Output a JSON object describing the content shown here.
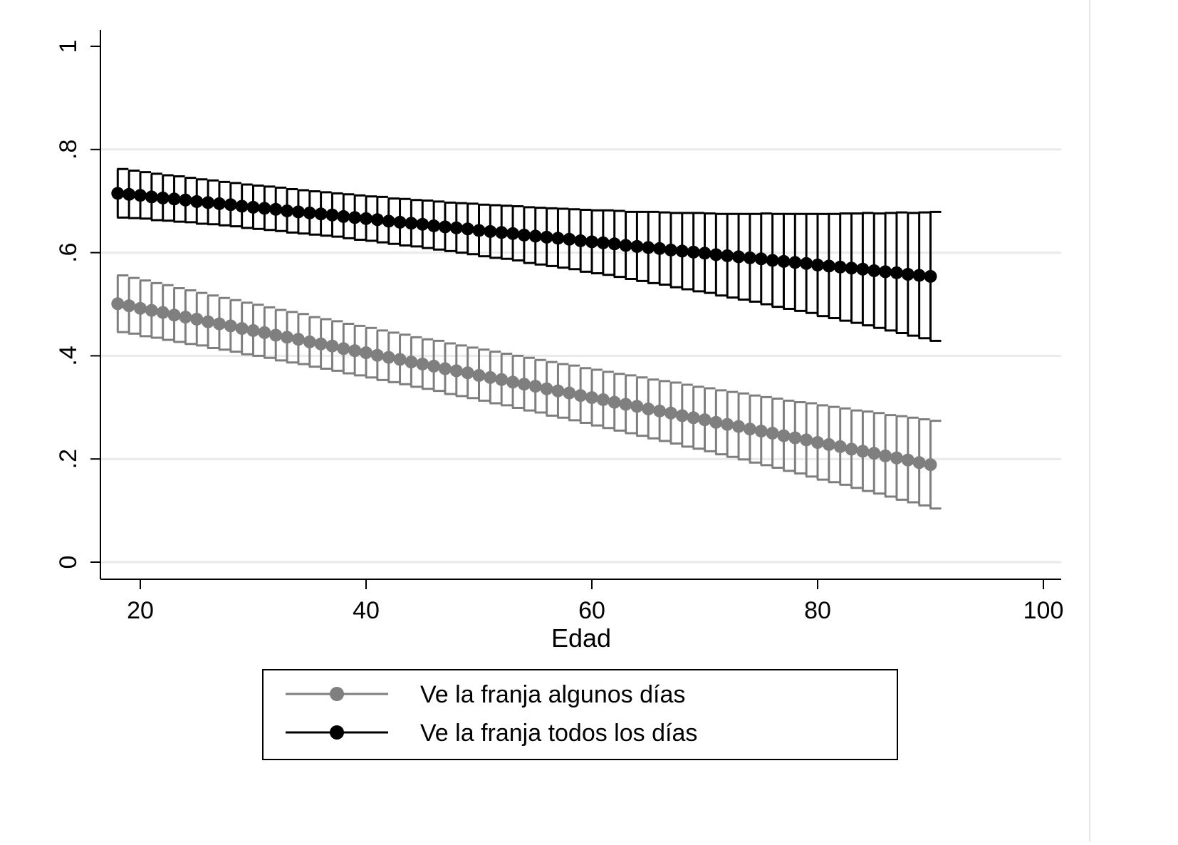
{
  "chart_data": {
    "type": "scatter",
    "title": "",
    "xlabel": "Edad",
    "ylabel": "",
    "xlim": [
      17,
      102
    ],
    "ylim": [
      0,
      1.03
    ],
    "xticks": [
      20,
      40,
      60,
      80,
      100
    ],
    "xtick_labels": [
      "20",
      "40",
      "60",
      "80",
      "100"
    ],
    "yticks": [
      0,
      0.2,
      0.4,
      0.6,
      0.8,
      1
    ],
    "ytick_labels": [
      "0",
      ".2",
      ".4",
      ".6",
      ".8",
      "1"
    ],
    "grid": "horizontal",
    "legend_position": "bottom",
    "x": [
      18,
      19,
      20,
      21,
      22,
      23,
      24,
      25,
      26,
      27,
      28,
      29,
      30,
      31,
      32,
      33,
      34,
      35,
      36,
      37,
      38,
      39,
      40,
      41,
      42,
      43,
      44,
      45,
      46,
      47,
      48,
      49,
      50,
      51,
      52,
      53,
      54,
      55,
      56,
      57,
      58,
      59,
      60,
      61,
      62,
      63,
      64,
      65,
      66,
      67,
      68,
      69,
      70,
      71,
      72,
      73,
      74,
      75,
      76,
      77,
      78,
      79,
      80,
      81,
      82,
      83,
      84,
      85,
      86,
      87,
      88,
      89,
      90
    ],
    "series": [
      {
        "name": "Ve la franja algunos días",
        "color": "#7f7f7f",
        "values": [
          0.501,
          0.497,
          0.492,
          0.488,
          0.484,
          0.479,
          0.475,
          0.471,
          0.466,
          0.462,
          0.458,
          0.453,
          0.449,
          0.445,
          0.44,
          0.436,
          0.432,
          0.427,
          0.423,
          0.419,
          0.414,
          0.41,
          0.406,
          0.401,
          0.397,
          0.393,
          0.388,
          0.384,
          0.38,
          0.375,
          0.371,
          0.367,
          0.362,
          0.358,
          0.354,
          0.349,
          0.345,
          0.341,
          0.336,
          0.332,
          0.328,
          0.323,
          0.319,
          0.315,
          0.31,
          0.306,
          0.302,
          0.297,
          0.293,
          0.289,
          0.284,
          0.28,
          0.276,
          0.271,
          0.267,
          0.263,
          0.258,
          0.254,
          0.25,
          0.245,
          0.241,
          0.237,
          0.232,
          0.228,
          0.224,
          0.219,
          0.215,
          0.211,
          0.206,
          0.202,
          0.198,
          0.193,
          0.189
        ],
        "lower": [
          0.446,
          0.443,
          0.438,
          0.435,
          0.431,
          0.427,
          0.423,
          0.42,
          0.415,
          0.412,
          0.408,
          0.403,
          0.4,
          0.396,
          0.391,
          0.387,
          0.384,
          0.379,
          0.375,
          0.371,
          0.366,
          0.362,
          0.358,
          0.353,
          0.349,
          0.345,
          0.34,
          0.336,
          0.332,
          0.326,
          0.322,
          0.318,
          0.313,
          0.308,
          0.304,
          0.299,
          0.294,
          0.29,
          0.284,
          0.28,
          0.275,
          0.27,
          0.265,
          0.26,
          0.255,
          0.25,
          0.245,
          0.24,
          0.235,
          0.23,
          0.224,
          0.22,
          0.215,
          0.209,
          0.204,
          0.199,
          0.193,
          0.188,
          0.183,
          0.177,
          0.172,
          0.166,
          0.16,
          0.155,
          0.15,
          0.144,
          0.138,
          0.133,
          0.127,
          0.121,
          0.116,
          0.11,
          0.104
        ],
        "upper": [
          0.556,
          0.551,
          0.546,
          0.541,
          0.537,
          0.531,
          0.527,
          0.522,
          0.517,
          0.512,
          0.508,
          0.503,
          0.499,
          0.494,
          0.489,
          0.485,
          0.481,
          0.475,
          0.471,
          0.467,
          0.462,
          0.458,
          0.454,
          0.449,
          0.445,
          0.441,
          0.436,
          0.432,
          0.429,
          0.424,
          0.42,
          0.416,
          0.412,
          0.408,
          0.404,
          0.4,
          0.396,
          0.392,
          0.388,
          0.384,
          0.381,
          0.376,
          0.373,
          0.369,
          0.365,
          0.362,
          0.358,
          0.354,
          0.351,
          0.348,
          0.344,
          0.34,
          0.337,
          0.333,
          0.33,
          0.327,
          0.323,
          0.32,
          0.317,
          0.313,
          0.31,
          0.308,
          0.304,
          0.301,
          0.298,
          0.294,
          0.292,
          0.289,
          0.285,
          0.283,
          0.28,
          0.277,
          0.274
        ]
      },
      {
        "name": "Ve la franja todos los días",
        "color": "#000000",
        "values": [
          0.715,
          0.713,
          0.711,
          0.708,
          0.706,
          0.704,
          0.702,
          0.699,
          0.697,
          0.695,
          0.693,
          0.69,
          0.688,
          0.686,
          0.684,
          0.681,
          0.679,
          0.677,
          0.675,
          0.673,
          0.67,
          0.668,
          0.666,
          0.664,
          0.661,
          0.659,
          0.657,
          0.655,
          0.652,
          0.65,
          0.648,
          0.646,
          0.643,
          0.641,
          0.639,
          0.637,
          0.634,
          0.632,
          0.63,
          0.628,
          0.626,
          0.623,
          0.621,
          0.619,
          0.617,
          0.614,
          0.612,
          0.61,
          0.608,
          0.605,
          0.603,
          0.601,
          0.599,
          0.596,
          0.594,
          0.592,
          0.59,
          0.588,
          0.585,
          0.583,
          0.581,
          0.579,
          0.576,
          0.574,
          0.572,
          0.57,
          0.568,
          0.565,
          0.563,
          0.561,
          0.558,
          0.556,
          0.554
        ],
        "lower": [
          0.668,
          0.667,
          0.666,
          0.663,
          0.662,
          0.66,
          0.659,
          0.656,
          0.655,
          0.653,
          0.651,
          0.648,
          0.646,
          0.644,
          0.642,
          0.639,
          0.637,
          0.635,
          0.633,
          0.631,
          0.628,
          0.625,
          0.623,
          0.62,
          0.617,
          0.614,
          0.612,
          0.609,
          0.606,
          0.603,
          0.6,
          0.597,
          0.593,
          0.59,
          0.588,
          0.585,
          0.58,
          0.577,
          0.574,
          0.571,
          0.568,
          0.563,
          0.56,
          0.557,
          0.553,
          0.549,
          0.545,
          0.541,
          0.538,
          0.533,
          0.529,
          0.525,
          0.522,
          0.517,
          0.513,
          0.509,
          0.505,
          0.5,
          0.495,
          0.491,
          0.487,
          0.483,
          0.477,
          0.473,
          0.468,
          0.464,
          0.459,
          0.454,
          0.449,
          0.444,
          0.439,
          0.434,
          0.429
        ],
        "upper": [
          0.762,
          0.759,
          0.756,
          0.753,
          0.75,
          0.748,
          0.745,
          0.742,
          0.74,
          0.737,
          0.735,
          0.732,
          0.73,
          0.728,
          0.726,
          0.723,
          0.721,
          0.719,
          0.717,
          0.715,
          0.713,
          0.711,
          0.709,
          0.708,
          0.705,
          0.704,
          0.702,
          0.701,
          0.699,
          0.697,
          0.696,
          0.695,
          0.693,
          0.692,
          0.691,
          0.69,
          0.688,
          0.687,
          0.686,
          0.685,
          0.684,
          0.683,
          0.682,
          0.682,
          0.681,
          0.679,
          0.679,
          0.679,
          0.678,
          0.677,
          0.677,
          0.677,
          0.676,
          0.675,
          0.675,
          0.675,
          0.675,
          0.676,
          0.675,
          0.675,
          0.675,
          0.675,
          0.675,
          0.675,
          0.676,
          0.676,
          0.677,
          0.676,
          0.677,
          0.678,
          0.677,
          0.678,
          0.679
        ]
      }
    ]
  }
}
